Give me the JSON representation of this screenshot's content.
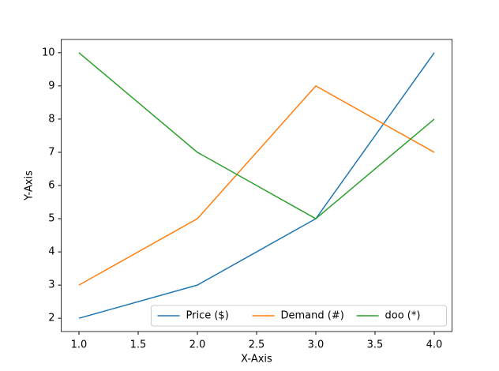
{
  "chart_data": {
    "type": "line",
    "x_label": "X-Axis",
    "y_label": "Y-Axis",
    "x": [
      1,
      2,
      3,
      4
    ],
    "series": [
      {
        "name": "Price ($)",
        "color": "#1f77b4",
        "values": [
          2,
          3,
          5,
          10
        ]
      },
      {
        "name": "Demand (#)",
        "color": "#ff7f0e",
        "values": [
          3,
          5,
          9,
          7
        ]
      },
      {
        "name": "doo (*)",
        "color": "#2ca02c",
        "values": [
          10,
          7,
          5,
          8
        ]
      }
    ],
    "xlim": [
      0.85,
      4.15
    ],
    "xticks": [
      {
        "value": 1,
        "label": "1.0"
      },
      1.5,
      {
        "value": 2,
        "label": "2.0"
      },
      2.5,
      {
        "value": 3,
        "label": "3.0"
      },
      3.5,
      {
        "value": 4,
        "label": "4.0"
      }
    ],
    "ylim": [
      1.6,
      10.4
    ],
    "yticks": [
      2,
      3,
      4,
      5,
      6,
      7,
      8,
      9,
      10
    ],
    "grid": false,
    "legend": "lower right"
  }
}
